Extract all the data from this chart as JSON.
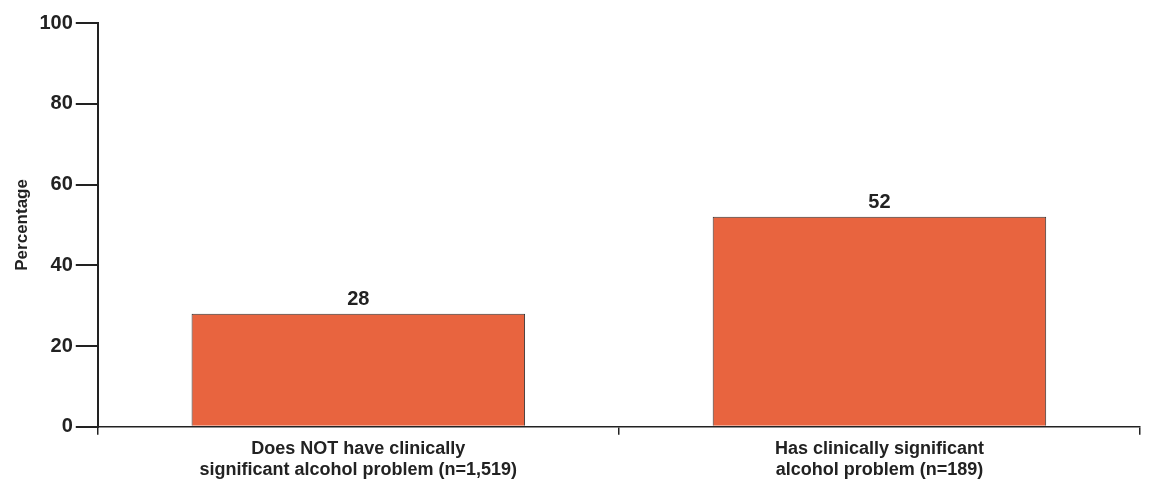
{
  "chart_data": {
    "type": "bar",
    "ylabel": "Percentage",
    "categories": [
      "Does NOT have clinically significant alcohol problem (n=1,519)",
      "Has clinically significant alcohol problem (n=189)"
    ],
    "values": [
      28,
      52
    ],
    "color": "#e8643f",
    "ylim": [
      0,
      100
    ],
    "yticks": [
      0,
      20,
      40,
      60,
      80,
      100
    ],
    "grid": false,
    "legend": false,
    "data_labels": true
  }
}
